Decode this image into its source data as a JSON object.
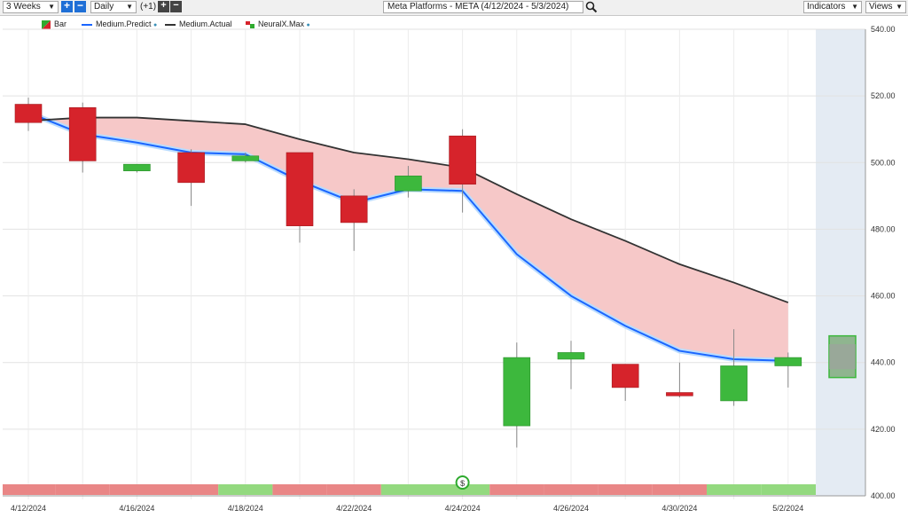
{
  "toolbar": {
    "period": "3 Weeks",
    "interval": "Daily",
    "offset": "(+1)",
    "title": "Meta Platforms - META (4/12/2024 - 5/3/2024)",
    "indicators": "Indicators",
    "views": "Views"
  },
  "legend": [
    {
      "label": "Bar",
      "color": "#d6232b"
    },
    {
      "label": "Medium.Predict",
      "color": "#1a66ff"
    },
    {
      "label": "Medium.Actual",
      "color": "#333333"
    },
    {
      "label": "NeuralX.Max",
      "color": "#2eaa2e"
    }
  ],
  "colors": {
    "bullish": "#3db83d",
    "bearish": "#d6232b",
    "predict_line": "#1a66ff",
    "actual_line": "#333333",
    "band_fill": "#f6c8c8",
    "signal_red": "#e98686",
    "signal_green": "#93d97f",
    "forecast_shade": "#e4ebf3"
  },
  "chart_data": {
    "type": "candlestick",
    "y_axis": {
      "min": 400,
      "max": 540,
      "ticks": [
        "540.00",
        "520.00",
        "500.00",
        "480.00",
        "460.00",
        "440.00",
        "420.00",
        "400.00"
      ]
    },
    "x_labels": [
      "4/12/2024",
      "4/16/2024",
      "4/18/2024",
      "4/22/2024",
      "4/24/2024",
      "4/26/2024",
      "4/30/2024",
      "5/2/2024"
    ],
    "candles": [
      {
        "date": "4/12/2024",
        "open": 517.5,
        "high": 519.5,
        "low": 509.5,
        "close": 512.0
      },
      {
        "date": "4/15/2024",
        "open": 516.5,
        "high": 518.0,
        "low": 497.0,
        "close": 500.5
      },
      {
        "date": "4/16/2024",
        "open": 497.5,
        "high": 499.5,
        "low": 497.0,
        "close": 499.5
      },
      {
        "date": "4/17/2024",
        "open": 503.0,
        "high": 504.0,
        "low": 487.0,
        "close": 494.0
      },
      {
        "date": "4/18/2024",
        "open": 500.5,
        "high": 503.0,
        "low": 500.0,
        "close": 502.0
      },
      {
        "date": "4/19/2024",
        "open": 503.0,
        "high": 503.0,
        "low": 476.0,
        "close": 481.0
      },
      {
        "date": "4/22/2024",
        "open": 490.0,
        "high": 492.0,
        "low": 473.5,
        "close": 482.0
      },
      {
        "date": "4/23/2024",
        "open": 491.5,
        "high": 499.0,
        "low": 489.5,
        "close": 496.0
      },
      {
        "date": "4/24/2024",
        "open": 508.0,
        "high": 510.0,
        "low": 485.0,
        "close": 493.5
      },
      {
        "date": "4/25/2024",
        "open": 421.0,
        "high": 446.0,
        "low": 414.5,
        "close": 441.5
      },
      {
        "date": "4/26/2024",
        "open": 441.0,
        "high": 446.5,
        "low": 432.0,
        "close": 443.0
      },
      {
        "date": "4/29/2024",
        "open": 439.5,
        "high": 439.5,
        "low": 428.5,
        "close": 432.5
      },
      {
        "date": "4/30/2024",
        "open": 431.0,
        "high": 440.0,
        "low": 429.5,
        "close": 430.0
      },
      {
        "date": "5/1/2024",
        "open": 428.5,
        "high": 450.0,
        "low": 427.0,
        "close": 439.0
      },
      {
        "date": "5/2/2024",
        "open": 439.0,
        "high": 443.0,
        "low": 432.5,
        "close": 441.5
      }
    ],
    "forecast_bar": {
      "date": "5/3/2024",
      "open": 435.5,
      "close": 448.0
    },
    "series": [
      {
        "name": "Medium.Predict",
        "values": [
          515.0,
          508.5,
          506.0,
          503.0,
          502.5,
          494.5,
          488.0,
          492.0,
          491.5,
          472.5,
          460.0,
          451.0,
          443.5,
          441.0,
          440.5
        ]
      },
      {
        "name": "Medium.Actual",
        "values": [
          512.5,
          513.5,
          513.5,
          512.5,
          511.5,
          507.0,
          503.0,
          501.0,
          498.5,
          490.5,
          483.0,
          476.5,
          469.5,
          464.0,
          458.0
        ]
      }
    ],
    "signal_strip": [
      "red",
      "red",
      "red",
      "red",
      "green",
      "red",
      "red",
      "green",
      "green",
      "red",
      "red",
      "red",
      "red",
      "green",
      "green"
    ],
    "signal_marker": "$"
  }
}
